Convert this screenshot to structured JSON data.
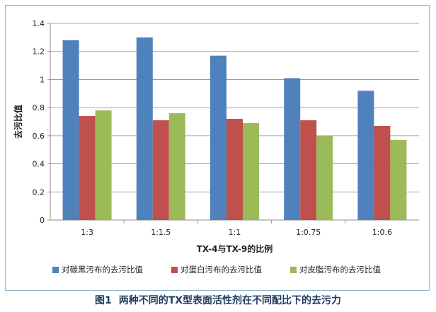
{
  "caption": {
    "figure_label": "图1",
    "text": "两种不同的TX型表面活性剂在不同配比下的去污力"
  },
  "chart_data": {
    "type": "bar",
    "title": "",
    "xlabel": "TX-4与TX-9的比例",
    "ylabel": "去污比值",
    "ylim": [
      0,
      1.4
    ],
    "yticks": [
      "0",
      "0.2",
      "0.4",
      "0.6",
      "0.8",
      "1",
      "1.2",
      "1.4"
    ],
    "grid": true,
    "legend_position": "bottom",
    "categories": [
      "1:3",
      "1:1.5",
      "1:1",
      "1:0.75",
      "1:0.6"
    ],
    "series": [
      {
        "name": "对碳黑污布的去污比值",
        "color": "#4f81bd",
        "values": [
          1.28,
          1.3,
          1.17,
          1.01,
          0.92
        ]
      },
      {
        "name": "对蛋白污布的去污比值",
        "color": "#c0504d",
        "values": [
          0.74,
          0.71,
          0.72,
          0.71,
          0.67
        ]
      },
      {
        "name": "对皮脂污布的去污比值",
        "color": "#9bbb59",
        "values": [
          0.78,
          0.76,
          0.69,
          0.6,
          0.57
        ]
      }
    ]
  }
}
